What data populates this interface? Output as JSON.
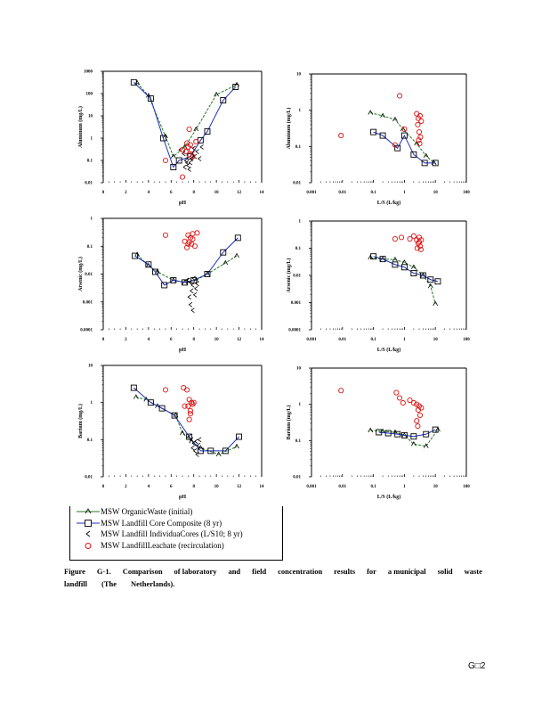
{
  "page": {
    "caption_line1": [
      "Figure",
      "G·1.",
      "Comparison",
      "of laboratory",
      "and",
      "field",
      "concentration",
      "results",
      "for",
      "a municipal",
      "solid",
      "waste"
    ],
    "caption_line2": [
      "landfill",
      "(The",
      "Netherlands)."
    ],
    "page_number": "G□2"
  },
  "legend": {
    "items": [
      {
        "label": "MSW OrganicWaste (initial)",
        "symbol": "triangle-line",
        "color": "#1f7a1f"
      },
      {
        "label": "MSW Landfill Core Composite (8 yr)",
        "symbol": "square-line",
        "color": "#1f2fbf"
      },
      {
        "label": "MSW Landfill IndividuaCores (L/S10; 8 yr)",
        "symbol": "chevron",
        "color": "#000000"
      },
      {
        "label": "MSW LandfillLeachate (recirculation)",
        "symbol": "circle",
        "color": "#dd1111"
      }
    ]
  },
  "colors": {
    "organic": "#1f7a1f",
    "composite": "#1f2fbf",
    "cores": "#000000",
    "leachate": "#dd1111"
  },
  "chart_data": [
    {
      "id": "al-ph",
      "type": "scatter",
      "title": "",
      "xlabel": "pH",
      "ylabel": "Aluminum (mg/L)",
      "xscale": "linear",
      "yscale": "log",
      "xlim": [
        0,
        14
      ],
      "ylim": [
        0.01,
        1000
      ],
      "xticks": [
        "0",
        "2",
        "4",
        "6",
        "8",
        "10",
        "12",
        "14"
      ],
      "xtick_values": [
        0,
        2,
        4,
        6,
        8,
        10,
        12,
        14
      ],
      "yticks": [
        "0.01",
        "0.1",
        "1",
        "10",
        "100",
        "1000"
      ],
      "ytick_values": [
        0.01,
        0.1,
        1,
        10,
        100,
        1000
      ],
      "series": [
        {
          "name": "MSW OrganicWaste (initial)",
          "kind": "organic",
          "x": [
            3.0,
            4.0,
            5.5,
            6.2,
            7.2,
            8.2,
            10.0,
            11.8
          ],
          "y": [
            300,
            80,
            1.2,
            0.15,
            0.4,
            2.5,
            90,
            250
          ]
        },
        {
          "name": "MSW Landfill Core Composite (8 yr)",
          "kind": "composite",
          "x": [
            2.7,
            4.2,
            5.3,
            6.2,
            6.7,
            7.7,
            8.6,
            9.2,
            10.6,
            11.7
          ],
          "y": [
            320,
            60,
            1.0,
            0.05,
            0.1,
            0.15,
            0.8,
            2.0,
            50,
            200
          ]
        },
        {
          "name": "MSW Landfill IndividuaCores (L/S10; 8 yr)",
          "kind": "cores",
          "x": [
            6.8,
            7.1,
            7.3,
            7.5,
            7.6,
            7.7,
            7.8,
            7.9,
            8.0,
            8.1,
            8.3,
            8.5,
            8.7,
            7.4,
            7.2
          ],
          "y": [
            0.3,
            0.2,
            0.1,
            0.06,
            0.04,
            0.08,
            0.12,
            0.2,
            0.35,
            0.15,
            0.25,
            0.12,
            0.4,
            0.08,
            0.05
          ]
        },
        {
          "name": "MSW LandfillLeachate (recirculation)",
          "kind": "leachate",
          "x": [
            5.5,
            7.0,
            7.0,
            7.6,
            7.4,
            7.5,
            7.7,
            7.8,
            8.2,
            7.3,
            7.6,
            7.9
          ],
          "y": [
            0.1,
            0.018,
            0.3,
            2.5,
            0.6,
            0.4,
            0.5,
            0.3,
            0.7,
            0.25,
            0.18,
            0.15
          ]
        }
      ]
    },
    {
      "id": "al-ls",
      "type": "scatter",
      "title": "",
      "xlabel": "L/S (L/kg)",
      "ylabel": "Aluminum (mg/L)",
      "xscale": "log",
      "yscale": "log",
      "xlim": [
        0.001,
        100
      ],
      "ylim": [
        0.01,
        10
      ],
      "xticks": [
        "0.001",
        "0.01",
        "0.1",
        "1",
        "10",
        "100"
      ],
      "xtick_values": [
        0.001,
        0.01,
        0.1,
        1,
        10,
        100
      ],
      "yticks": [
        "0.01",
        "0.1",
        "1",
        "10"
      ],
      "ytick_values": [
        0.01,
        0.1,
        1,
        10
      ],
      "series": [
        {
          "name": "MSW OrganicWaste (initial)",
          "kind": "organic",
          "x": [
            0.08,
            0.2,
            0.5,
            0.9,
            2.5,
            5.0,
            9.0
          ],
          "y": [
            0.85,
            0.7,
            0.55,
            0.3,
            0.12,
            0.055,
            0.035
          ]
        },
        {
          "name": "MSW Landfill Core Composite (8 yr)",
          "kind": "composite",
          "x": [
            0.1,
            0.2,
            0.6,
            1.0,
            2.0,
            4.5,
            10.0
          ],
          "y": [
            0.25,
            0.2,
            0.09,
            0.2,
            0.06,
            0.035,
            0.035
          ]
        },
        {
          "name": "MSW Landfill IndividuaCores (L/S10; 8 yr)",
          "kind": "cores",
          "x": [],
          "y": []
        },
        {
          "name": "MSW LandfillLeachate (recirculation)",
          "kind": "leachate",
          "x": [
            0.009,
            0.7,
            0.5,
            1.0,
            2.5,
            2.8,
            3.2,
            3.5,
            2.7,
            3.0,
            3.3,
            2.9,
            3.1
          ],
          "y": [
            0.2,
            2.5,
            0.11,
            0.3,
            0.8,
            0.6,
            0.7,
            0.5,
            0.4,
            0.25,
            0.18,
            0.15,
            0.12
          ]
        }
      ]
    },
    {
      "id": "as-ph",
      "type": "scatter",
      "title": "",
      "xlabel": "pH",
      "ylabel": "Arsenic (mg/L)",
      "xscale": "linear",
      "yscale": "log",
      "xlim": [
        0,
        14
      ],
      "ylim": [
        0.0001,
        1
      ],
      "xticks": [
        "0",
        "2",
        "4",
        "6",
        "8",
        "10",
        "12",
        "14"
      ],
      "xtick_values": [
        0,
        2,
        4,
        6,
        8,
        10,
        12,
        14
      ],
      "yticks": [
        "0.0001",
        "0.001",
        "0.01",
        "0.1",
        "1"
      ],
      "ytick_values": [
        0.0001,
        0.001,
        0.01,
        0.1,
        1
      ],
      "series": [
        {
          "name": "MSW OrganicWaste (initial)",
          "kind": "organic",
          "x": [
            3.0,
            4.0,
            4.8,
            6.2,
            7.2,
            8.2,
            9.2,
            10.8,
            11.8
          ],
          "y": [
            0.05,
            0.02,
            0.012,
            0.006,
            0.005,
            0.006,
            0.01,
            0.025,
            0.045
          ]
        },
        {
          "name": "MSW Landfill Core Composite (8 yr)",
          "kind": "composite",
          "x": [
            2.8,
            4.0,
            4.6,
            5.4,
            6.2,
            7.2,
            8.0,
            9.2,
            10.6,
            11.9
          ],
          "y": [
            0.045,
            0.022,
            0.012,
            0.004,
            0.006,
            0.005,
            0.006,
            0.01,
            0.06,
            0.2
          ]
        },
        {
          "name": "MSW Landfill IndividuaCores (L/S10; 8 yr)",
          "kind": "cores",
          "x": [
            7.5,
            7.7,
            7.9,
            8.0,
            8.2,
            7.8,
            8.1,
            7.6,
            8.3,
            7.7,
            7.9,
            7.4
          ],
          "y": [
            0.006,
            0.005,
            0.004,
            0.007,
            0.003,
            0.0025,
            0.0018,
            0.0015,
            0.0045,
            0.0008,
            0.0005,
            0.006
          ]
        },
        {
          "name": "MSW LandfillLeachate (recirculation)",
          "kind": "leachate",
          "x": [
            5.5,
            7.2,
            7.5,
            7.7,
            7.9,
            8.1,
            7.4,
            7.6,
            7.8,
            7.5,
            7.9,
            8.3
          ],
          "y": [
            0.25,
            0.15,
            0.12,
            0.2,
            0.18,
            0.1,
            0.09,
            0.14,
            0.12,
            0.25,
            0.28,
            0.3
          ]
        }
      ]
    },
    {
      "id": "as-ls",
      "type": "scatter",
      "title": "",
      "xlabel": "L/S (L/kg)",
      "ylabel": "Arsenic (mg/L)",
      "xscale": "log",
      "yscale": "log",
      "xlim": [
        0.001,
        100
      ],
      "ylim": [
        0.0001,
        1
      ],
      "xticks": [
        "0.001",
        "0.01",
        "0.1",
        "1",
        "10",
        "100"
      ],
      "xtick_values": [
        0.001,
        0.01,
        0.1,
        1,
        10,
        100
      ],
      "yticks": [
        "0.0001",
        "0.001",
        "0.01",
        "0.1",
        "1"
      ],
      "ytick_values": [
        0.0001,
        0.001,
        0.01,
        0.1,
        1
      ],
      "series": [
        {
          "name": "MSW OrganicWaste (initial)",
          "kind": "organic",
          "x": [
            0.08,
            0.2,
            0.5,
            1.0,
            2.0,
            4.0,
            7.0,
            10.0
          ],
          "y": [
            0.045,
            0.04,
            0.038,
            0.03,
            0.02,
            0.01,
            0.004,
            0.0009
          ]
        },
        {
          "name": "MSW Landfill Core Composite (8 yr)",
          "kind": "composite",
          "x": [
            0.1,
            0.2,
            0.5,
            1.0,
            2.0,
            4.0,
            7.0,
            12.0
          ],
          "y": [
            0.05,
            0.04,
            0.025,
            0.02,
            0.012,
            0.01,
            0.007,
            0.006
          ]
        },
        {
          "name": "MSW Landfill IndividuaCores (L/S10; 8 yr)",
          "kind": "cores",
          "x": [],
          "y": []
        },
        {
          "name": "MSW LandfillLeachate (recirculation)",
          "kind": "leachate",
          "x": [
            0.5,
            0.8,
            1.5,
            2.0,
            2.5,
            3.0,
            3.5,
            2.8,
            3.2,
            2.6,
            3.4,
            3.0
          ],
          "y": [
            0.22,
            0.25,
            0.22,
            0.28,
            0.2,
            0.25,
            0.2,
            0.15,
            0.12,
            0.1,
            0.09,
            0.17
          ]
        }
      ]
    },
    {
      "id": "ba-ph",
      "type": "scatter",
      "title": "",
      "xlabel": "pH",
      "ylabel": "Barium (mg/L)",
      "xscale": "linear",
      "yscale": "log",
      "xlim": [
        0,
        14
      ],
      "ylim": [
        0.01,
        10
      ],
      "xticks": [
        "0",
        "2",
        "4",
        "6",
        "8",
        "10",
        "12",
        "14"
      ],
      "xtick_values": [
        0,
        2,
        4,
        6,
        8,
        10,
        12,
        14
      ],
      "yticks": [
        "0.01",
        "0.1",
        "1",
        "10"
      ],
      "ytick_values": [
        0.01,
        0.1,
        1,
        10
      ],
      "series": [
        {
          "name": "MSW OrganicWaste (initial)",
          "kind": "organic",
          "x": [
            2.9,
            3.8,
            4.8,
            6.4,
            7.0,
            7.8,
            8.6,
            10.2,
            11.8
          ],
          "y": [
            1.4,
            1.2,
            0.8,
            0.45,
            0.15,
            0.09,
            0.06,
            0.04,
            0.065
          ]
        },
        {
          "name": "MSW Landfill Core Composite (8 yr)",
          "kind": "composite",
          "x": [
            2.7,
            4.2,
            5.2,
            6.3,
            7.6,
            8.6,
            9.5,
            10.8,
            12.0
          ],
          "y": [
            2.5,
            1.0,
            0.7,
            0.45,
            0.12,
            0.05,
            0.05,
            0.05,
            0.12
          ]
        },
        {
          "name": "MSW Landfill IndividuaCores (L/S10; 8 yr)",
          "kind": "cores",
          "x": [
            7.6,
            7.8,
            8.0,
            8.2,
            8.4,
            7.9,
            8.1,
            8.3,
            8.5
          ],
          "y": [
            0.12,
            0.1,
            0.08,
            0.09,
            0.07,
            0.06,
            0.05,
            0.04,
            0.1
          ]
        },
        {
          "name": "MSW LandfillLeachate (recirculation)",
          "kind": "leachate",
          "x": [
            5.5,
            7.1,
            7.4,
            7.6,
            7.8,
            8.0,
            7.2,
            7.5,
            7.7,
            7.9,
            7.7,
            7.6
          ],
          "y": [
            2.2,
            2.5,
            2.2,
            1.2,
            1.0,
            1.0,
            0.8,
            0.8,
            0.6,
            0.9,
            0.5,
            0.35
          ]
        }
      ]
    },
    {
      "id": "ba-ls",
      "type": "scatter",
      "title": "",
      "xlabel": "L/S (L/kg)",
      "ylabel": "Barium (mg/L)",
      "xscale": "log",
      "yscale": "log",
      "xlim": [
        0.001,
        100
      ],
      "ylim": [
        0.01,
        10
      ],
      "xticks": [
        "0.001",
        "0.01",
        "0.1",
        "1",
        "10",
        "100"
      ],
      "xtick_values": [
        0.001,
        0.01,
        0.1,
        1,
        10,
        100
      ],
      "yticks": [
        "0.01",
        "0.1",
        "1",
        "10"
      ],
      "ytick_values": [
        0.01,
        0.1,
        1,
        10
      ],
      "series": [
        {
          "name": "MSW OrganicWaste (initial)",
          "kind": "organic",
          "x": [
            0.08,
            0.2,
            0.5,
            1.0,
            2.0,
            5.0,
            12.0
          ],
          "y": [
            0.19,
            0.18,
            0.17,
            0.14,
            0.08,
            0.07,
            0.2
          ]
        },
        {
          "name": "MSW Landfill Core Composite (8 yr)",
          "kind": "composite",
          "x": [
            0.15,
            0.3,
            0.6,
            1.0,
            2.0,
            5.0,
            10.0
          ],
          "y": [
            0.17,
            0.16,
            0.15,
            0.14,
            0.13,
            0.15,
            0.2
          ]
        },
        {
          "name": "MSW Landfill IndividuaCores (L/S10; 8 yr)",
          "kind": "cores",
          "x": [],
          "y": []
        },
        {
          "name": "MSW LandfillLeachate (recirculation)",
          "kind": "leachate",
          "x": [
            0.009,
            0.55,
            0.7,
            0.9,
            1.5,
            2.0,
            2.5,
            3.0,
            3.5,
            2.8,
            3.2,
            2.5,
            2.7
          ],
          "y": [
            2.4,
            2.1,
            1.5,
            1.1,
            1.3,
            1.1,
            1.0,
            0.9,
            0.8,
            0.7,
            0.5,
            0.35,
            0.25
          ]
        }
      ]
    }
  ]
}
